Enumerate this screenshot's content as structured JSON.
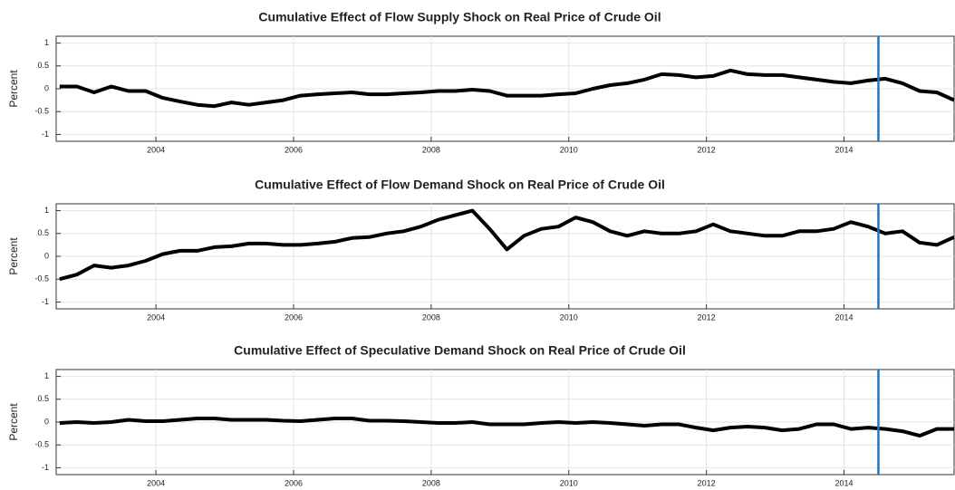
{
  "chart_data": [
    {
      "type": "line",
      "title": "Cumulative Effect of Flow Supply Shock on Real Price of Crude Oil",
      "y_label": "Percent",
      "x": [
        2002.6,
        2002.85,
        2003.1,
        2003.35,
        2003.6,
        2003.85,
        2004.1,
        2004.35,
        2004.6,
        2004.85,
        2005.1,
        2005.35,
        2005.6,
        2005.85,
        2006.1,
        2006.35,
        2006.6,
        2006.85,
        2007.1,
        2007.35,
        2007.6,
        2007.85,
        2008.1,
        2008.35,
        2008.6,
        2008.85,
        2009.1,
        2009.35,
        2009.6,
        2009.85,
        2010.1,
        2010.35,
        2010.6,
        2010.85,
        2011.1,
        2011.35,
        2011.6,
        2011.85,
        2012.1,
        2012.35,
        2012.6,
        2012.85,
        2013.1,
        2013.35,
        2013.6,
        2013.85,
        2014.1,
        2014.35,
        2014.6,
        2014.85,
        2015.1,
        2015.35,
        2015.6
      ],
      "values": [
        0.05,
        0.05,
        -0.08,
        0.05,
        -0.05,
        -0.05,
        -0.2,
        -0.28,
        -0.35,
        -0.38,
        -0.3,
        -0.35,
        -0.3,
        -0.25,
        -0.15,
        -0.12,
        -0.1,
        -0.08,
        -0.12,
        -0.12,
        -0.1,
        -0.08,
        -0.05,
        -0.05,
        -0.02,
        -0.05,
        -0.15,
        -0.15,
        -0.15,
        -0.12,
        -0.1,
        0.0,
        0.08,
        0.12,
        0.2,
        0.32,
        0.3,
        0.25,
        0.28,
        0.4,
        0.32,
        0.3,
        0.3,
        0.25,
        0.2,
        0.15,
        0.12,
        0.18,
        0.22,
        0.12,
        -0.05,
        -0.08,
        -0.25
      ],
      "color": "#000000",
      "vline": 2014.5,
      "vline_color": "#1f77c4",
      "xlim": [
        2002.55,
        2015.6
      ],
      "xticks": [
        2004,
        2006,
        2008,
        2010,
        2012,
        2014
      ],
      "ylim": [
        -1.15,
        1.15
      ],
      "yticks": [
        -1,
        -0.5,
        0,
        0.5,
        1
      ],
      "grid": true
    },
    {
      "type": "line",
      "title": "Cumulative Effect of Flow Demand Shock on Real Price of Crude Oil",
      "y_label": "Percent",
      "x": [
        2002.6,
        2002.85,
        2003.1,
        2003.35,
        2003.6,
        2003.85,
        2004.1,
        2004.35,
        2004.6,
        2004.85,
        2005.1,
        2005.35,
        2005.6,
        2005.85,
        2006.1,
        2006.35,
        2006.6,
        2006.85,
        2007.1,
        2007.35,
        2007.6,
        2007.85,
        2008.1,
        2008.35,
        2008.6,
        2008.85,
        2009.1,
        2009.35,
        2009.6,
        2009.85,
        2010.1,
        2010.35,
        2010.6,
        2010.85,
        2011.1,
        2011.35,
        2011.6,
        2011.85,
        2012.1,
        2012.35,
        2012.6,
        2012.85,
        2013.1,
        2013.35,
        2013.6,
        2013.85,
        2014.1,
        2014.35,
        2014.6,
        2014.85,
        2015.1,
        2015.35,
        2015.6
      ],
      "values": [
        -0.5,
        -0.4,
        -0.2,
        -0.25,
        -0.2,
        -0.1,
        0.05,
        0.12,
        0.12,
        0.2,
        0.22,
        0.28,
        0.28,
        0.25,
        0.25,
        0.28,
        0.32,
        0.4,
        0.42,
        0.5,
        0.55,
        0.65,
        0.8,
        0.9,
        1.0,
        0.6,
        0.15,
        0.45,
        0.6,
        0.65,
        0.85,
        0.75,
        0.55,
        0.45,
        0.55,
        0.5,
        0.5,
        0.55,
        0.7,
        0.55,
        0.5,
        0.45,
        0.45,
        0.55,
        0.55,
        0.6,
        0.75,
        0.65,
        0.5,
        0.55,
        0.3,
        0.25,
        0.42
      ],
      "color": "#000000",
      "vline": 2014.5,
      "vline_color": "#1f77c4",
      "xlim": [
        2002.55,
        2015.6
      ],
      "xticks": [
        2004,
        2006,
        2008,
        2010,
        2012,
        2014
      ],
      "ylim": [
        -1.15,
        1.15
      ],
      "yticks": [
        -1,
        -0.5,
        0,
        0.5,
        1
      ],
      "grid": true
    },
    {
      "type": "line",
      "title": "Cumulative Effect of Speculative Demand Shock on Real Price of Crude Oil",
      "y_label": "Percent",
      "x": [
        2002.6,
        2002.85,
        2003.1,
        2003.35,
        2003.6,
        2003.85,
        2004.1,
        2004.35,
        2004.6,
        2004.85,
        2005.1,
        2005.35,
        2005.6,
        2005.85,
        2006.1,
        2006.35,
        2006.6,
        2006.85,
        2007.1,
        2007.35,
        2007.6,
        2007.85,
        2008.1,
        2008.35,
        2008.6,
        2008.85,
        2009.1,
        2009.35,
        2009.6,
        2009.85,
        2010.1,
        2010.35,
        2010.6,
        2010.85,
        2011.1,
        2011.35,
        2011.6,
        2011.85,
        2012.1,
        2012.35,
        2012.6,
        2012.85,
        2013.1,
        2013.35,
        2013.6,
        2013.85,
        2014.1,
        2014.35,
        2014.6,
        2014.85,
        2015.1,
        2015.35,
        2015.6
      ],
      "values": [
        -0.02,
        0.0,
        -0.02,
        0.0,
        0.05,
        0.02,
        0.02,
        0.05,
        0.08,
        0.08,
        0.05,
        0.05,
        0.05,
        0.03,
        0.02,
        0.05,
        0.08,
        0.08,
        0.03,
        0.03,
        0.02,
        0.0,
        -0.02,
        -0.02,
        0.0,
        -0.05,
        -0.05,
        -0.05,
        -0.02,
        0.0,
        -0.02,
        0.0,
        -0.02,
        -0.05,
        -0.08,
        -0.05,
        -0.05,
        -0.12,
        -0.18,
        -0.12,
        -0.1,
        -0.12,
        -0.18,
        -0.15,
        -0.05,
        -0.05,
        -0.15,
        -0.12,
        -0.15,
        -0.2,
        -0.3,
        -0.15,
        -0.15
      ],
      "color": "#000000",
      "vline": 2014.5,
      "vline_color": "#1f77c4",
      "xlim": [
        2002.55,
        2015.6
      ],
      "xticks": [
        2004,
        2006,
        2008,
        2010,
        2012,
        2014
      ],
      "ylim": [
        -1.15,
        1.15
      ],
      "yticks": [
        -1,
        -0.5,
        0,
        0.5,
        1
      ],
      "grid": true
    }
  ]
}
